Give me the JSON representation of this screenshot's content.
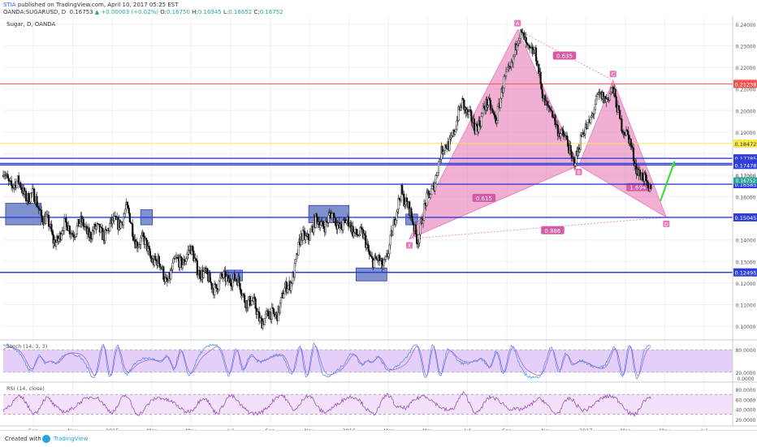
{
  "header": {
    "publisher": "STIA",
    "published_text": "published on TradingView.com, April 10, 2017 05:25 EST",
    "symbol": "OANDA:SUGARUSD, D",
    "last": "0.16753",
    "change": "▲ +0.00003 (+0.02%)",
    "o": "0.16750",
    "h": "0.16945",
    "l": "0.16652",
    "c": "0.16752"
  },
  "footer": {
    "created_with": "Created with",
    "brand": "TradingView"
  },
  "chart_data": {
    "type": "line",
    "title": "Sugar, D, OANDA",
    "xlabel": "",
    "ylabel": "",
    "ylim": [
      0.094,
      0.243
    ],
    "grid": true,
    "x_ticks": [
      {
        "label": "Sep",
        "t": 2014.667
      },
      {
        "label": "Nov",
        "t": 2014.833
      },
      {
        "label": "2015",
        "t": 2015.0
      },
      {
        "label": "Mar",
        "t": 2015.167
      },
      {
        "label": "May",
        "t": 2015.333
      },
      {
        "label": "Jul",
        "t": 2015.5
      },
      {
        "label": "Sep",
        "t": 2015.667
      },
      {
        "label": "Nov",
        "t": 2015.833
      },
      {
        "label": "2016",
        "t": 2016.0
      },
      {
        "label": "Mar",
        "t": 2016.167
      },
      {
        "label": "May",
        "t": 2016.333
      },
      {
        "label": "Jul",
        "t": 2016.5
      },
      {
        "label": "Sep",
        "t": 2016.667
      },
      {
        "label": "Nov",
        "t": 2016.833
      },
      {
        "label": "2017",
        "t": 2017.0
      },
      {
        "label": "Mar",
        "t": 2017.167
      },
      {
        "label": "May",
        "t": 2017.333
      },
      {
        "label": "Jul",
        "t": 2017.5
      }
    ],
    "y_ticks": [
      "0.24000",
      "0.23000",
      "0.22000",
      "0.21000",
      "0.20000",
      "0.19000",
      "0.18000",
      "0.17000",
      "0.16000",
      "0.15000",
      "0.14000",
      "0.13000",
      "0.12000",
      "0.11000",
      "0.10000"
    ],
    "price_path": [
      {
        "t": 2014.54,
        "v": 0.17
      },
      {
        "t": 2014.6,
        "v": 0.165
      },
      {
        "t": 2014.66,
        "v": 0.16
      },
      {
        "t": 2014.72,
        "v": 0.15
      },
      {
        "t": 2014.75,
        "v": 0.139
      },
      {
        "t": 2014.79,
        "v": 0.145
      },
      {
        "t": 2014.87,
        "v": 0.146
      },
      {
        "t": 2014.94,
        "v": 0.143
      },
      {
        "t": 2015.0,
        "v": 0.146
      },
      {
        "t": 2015.06,
        "v": 0.153
      },
      {
        "t": 2015.1,
        "v": 0.141
      },
      {
        "t": 2015.15,
        "v": 0.136
      },
      {
        "t": 2015.2,
        "v": 0.127
      },
      {
        "t": 2015.23,
        "v": 0.122
      },
      {
        "t": 2015.28,
        "v": 0.13
      },
      {
        "t": 2015.33,
        "v": 0.134
      },
      {
        "t": 2015.4,
        "v": 0.121
      },
      {
        "t": 2015.45,
        "v": 0.119
      },
      {
        "t": 2015.5,
        "v": 0.124
      },
      {
        "t": 2015.55,
        "v": 0.116
      },
      {
        "t": 2015.62,
        "v": 0.105
      },
      {
        "t": 2015.66,
        "v": 0.103
      },
      {
        "t": 2015.7,
        "v": 0.108
      },
      {
        "t": 2015.75,
        "v": 0.12
      },
      {
        "t": 2015.8,
        "v": 0.14
      },
      {
        "t": 2015.86,
        "v": 0.147
      },
      {
        "t": 2015.92,
        "v": 0.15
      },
      {
        "t": 2015.98,
        "v": 0.147
      },
      {
        "t": 2016.03,
        "v": 0.145
      },
      {
        "t": 2016.07,
        "v": 0.138
      },
      {
        "t": 2016.11,
        "v": 0.13
      },
      {
        "t": 2016.14,
        "v": 0.127
      },
      {
        "t": 2016.19,
        "v": 0.145
      },
      {
        "t": 2016.22,
        "v": 0.165
      },
      {
        "t": 2016.26,
        "v": 0.15
      },
      {
        "t": 2016.29,
        "v": 0.142
      },
      {
        "t": 2016.35,
        "v": 0.165
      },
      {
        "t": 2016.41,
        "v": 0.185
      },
      {
        "t": 2016.45,
        "v": 0.19
      },
      {
        "t": 2016.48,
        "v": 0.206
      },
      {
        "t": 2016.53,
        "v": 0.19
      },
      {
        "t": 2016.57,
        "v": 0.202
      },
      {
        "t": 2016.62,
        "v": 0.198
      },
      {
        "t": 2016.66,
        "v": 0.213
      },
      {
        "t": 2016.71,
        "v": 0.232
      },
      {
        "t": 2016.74,
        "v": 0.234
      },
      {
        "t": 2016.79,
        "v": 0.223
      },
      {
        "t": 2016.84,
        "v": 0.2
      },
      {
        "t": 2016.89,
        "v": 0.192
      },
      {
        "t": 2016.94,
        "v": 0.178
      },
      {
        "t": 2016.97,
        "v": 0.182
      },
      {
        "t": 2017.02,
        "v": 0.198
      },
      {
        "t": 2017.07,
        "v": 0.207
      },
      {
        "t": 2017.11,
        "v": 0.208
      },
      {
        "t": 2017.15,
        "v": 0.196
      },
      {
        "t": 2017.19,
        "v": 0.182
      },
      {
        "t": 2017.23,
        "v": 0.171
      },
      {
        "t": 2017.265,
        "v": 0.161
      },
      {
        "t": 2017.275,
        "v": 0.1675
      }
    ],
    "horizontal_levels": [
      {
        "value": 0.21238,
        "label": "0.21238",
        "color": "#ef5350"
      },
      {
        "value": 0.18472,
        "label": "0.18472",
        "color": "#f9e84a"
      },
      {
        "value": 0.17785,
        "label": "0.17785",
        "color": "#2f3fd8"
      },
      {
        "value": 0.17547,
        "label": "0.17547",
        "color": "#2f3fd8"
      },
      {
        "value": 0.17478,
        "label": "0.17478",
        "color": "#2f3fd8"
      },
      {
        "value": 0.16585,
        "label": "0.16585",
        "color": "#2f3fd8"
      },
      {
        "value": 0.15045,
        "label": "0.15045",
        "color": "#2f3fd8"
      },
      {
        "value": 0.12495,
        "label": "0.12495",
        "color": "#2f3fd8"
      }
    ],
    "last_price_label": "0.16752",
    "ghost_tick_label": "0.17000",
    "boxes": [
      {
        "t1": 2014.55,
        "t2": 2014.7,
        "v1": 0.147,
        "v2": 0.157
      },
      {
        "t1": 2015.12,
        "t2": 2015.17,
        "v1": 0.147,
        "v2": 0.154
      },
      {
        "t1": 2015.48,
        "t2": 2015.55,
        "v1": 0.121,
        "v2": 0.126
      },
      {
        "t1": 2015.83,
        "t2": 2016.0,
        "v1": 0.148,
        "v2": 0.156
      },
      {
        "t1": 2016.03,
        "t2": 2016.16,
        "v1": 0.121,
        "v2": 0.127
      },
      {
        "t1": 2016.24,
        "t2": 2016.29,
        "v1": 0.147,
        "v2": 0.152
      }
    ],
    "pattern": {
      "points": [
        {
          "label": "X",
          "t": 2016.255,
          "v": 0.1405
        },
        {
          "label": "A",
          "t": 2016.712,
          "v": 0.2375
        },
        {
          "label": "B",
          "t": 2016.97,
          "v": 0.1745
        },
        {
          "label": "C",
          "t": 2017.115,
          "v": 0.214
        },
        {
          "label": "D",
          "t": 2017.34,
          "v": 0.1505
        }
      ],
      "ratios": [
        {
          "label": "0.635",
          "t": 2016.91,
          "v": 0.2255
        },
        {
          "label": "0.615",
          "t": 2016.57,
          "v": 0.1595
        },
        {
          "label": "1.694",
          "t": 2017.22,
          "v": 0.1645
        },
        {
          "label": "0.886",
          "t": 2016.86,
          "v": 0.1445
        }
      ],
      "color": "#e879b8"
    },
    "arrow": {
      "t1": 2017.315,
      "v1": 0.158,
      "t2": 2017.375,
      "v2": 0.1765,
      "color": "#2ee02e"
    },
    "stoch": {
      "label": "Stoch (14, 3, 3)",
      "ylim": [
        0,
        100
      ],
      "ticks": [
        "80.0000",
        "20.0000",
        "0.0000"
      ],
      "band": [
        20,
        80
      ]
    },
    "rsi": {
      "label": "RSI (14, close)",
      "ylim": [
        10,
        90
      ],
      "ticks": [
        "80.0000",
        "60.0000",
        "40.0000",
        "20.0000"
      ],
      "band": [
        30,
        70
      ]
    }
  }
}
